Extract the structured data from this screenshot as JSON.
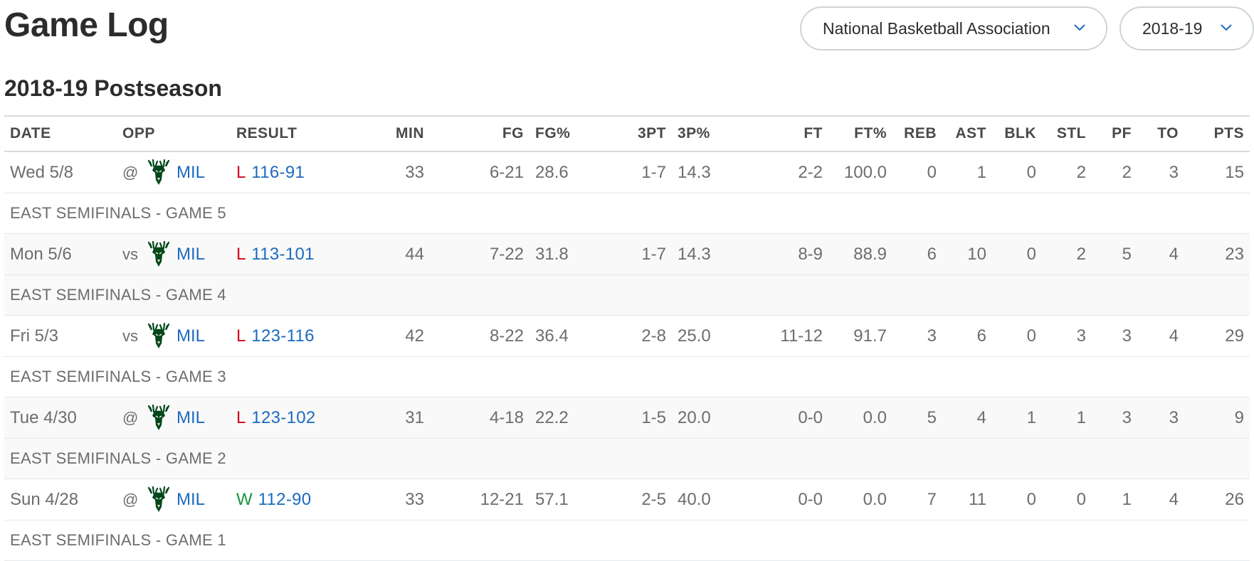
{
  "header": {
    "title": "Game Log",
    "league_select": "National Basketball Association",
    "season_select": "2018-19"
  },
  "section": {
    "title": "2018-19 Postseason"
  },
  "columns": [
    "DATE",
    "OPP",
    "RESULT",
    "MIN",
    "FG",
    "FG%",
    "3PT",
    "3P%",
    "FT",
    "FT%",
    "REB",
    "AST",
    "BLK",
    "STL",
    "PF",
    "TO",
    "PTS"
  ],
  "games": [
    {
      "date": "Wed 5/8",
      "prefix": "@",
      "team": "MIL",
      "outcome": "L",
      "score": "116-91",
      "min": "33",
      "fg": "6-21",
      "fgp": "28.6",
      "tpt": "1-7",
      "tpp": "14.3",
      "ft": "2-2",
      "ftp": "100.0",
      "reb": "0",
      "ast": "1",
      "blk": "0",
      "stl": "2",
      "pf": "2",
      "to": "3",
      "pts": "15",
      "note": "EAST SEMIFINALS - GAME 5"
    },
    {
      "date": "Mon 5/6",
      "prefix": "vs",
      "team": "MIL",
      "outcome": "L",
      "score": "113-101",
      "min": "44",
      "fg": "7-22",
      "fgp": "31.8",
      "tpt": "1-7",
      "tpp": "14.3",
      "ft": "8-9",
      "ftp": "88.9",
      "reb": "6",
      "ast": "10",
      "blk": "0",
      "stl": "2",
      "pf": "5",
      "to": "4",
      "pts": "23",
      "note": "EAST SEMIFINALS - GAME 4"
    },
    {
      "date": "Fri 5/3",
      "prefix": "vs",
      "team": "MIL",
      "outcome": "L",
      "score": "123-116",
      "min": "42",
      "fg": "8-22",
      "fgp": "36.4",
      "tpt": "2-8",
      "tpp": "25.0",
      "ft": "11-12",
      "ftp": "91.7",
      "reb": "3",
      "ast": "6",
      "blk": "0",
      "stl": "3",
      "pf": "3",
      "to": "4",
      "pts": "29",
      "note": "EAST SEMIFINALS - GAME 3"
    },
    {
      "date": "Tue 4/30",
      "prefix": "@",
      "team": "MIL",
      "outcome": "L",
      "score": "123-102",
      "min": "31",
      "fg": "4-18",
      "fgp": "22.2",
      "tpt": "1-5",
      "tpp": "20.0",
      "ft": "0-0",
      "ftp": "0.0",
      "reb": "5",
      "ast": "4",
      "blk": "1",
      "stl": "1",
      "pf": "3",
      "to": "3",
      "pts": "9",
      "note": "EAST SEMIFINALS - GAME 2"
    },
    {
      "date": "Sun 4/28",
      "prefix": "@",
      "team": "MIL",
      "outcome": "W",
      "score": "112-90",
      "min": "33",
      "fg": "12-21",
      "fgp": "57.1",
      "tpt": "2-5",
      "tpp": "40.0",
      "ft": "0-0",
      "ftp": "0.0",
      "reb": "7",
      "ast": "11",
      "blk": "0",
      "stl": "0",
      "pf": "1",
      "to": "4",
      "pts": "26",
      "note": "EAST SEMIFINALS - GAME 1"
    }
  ],
  "colors": {
    "win": "#16953f",
    "loss": "#d0021b",
    "link": "#1b6ac0",
    "team_logo": "#00471b"
  },
  "icons": {
    "team_logo": "bucks-deer-logo-icon",
    "dropdown": "chevron-down-icon"
  }
}
